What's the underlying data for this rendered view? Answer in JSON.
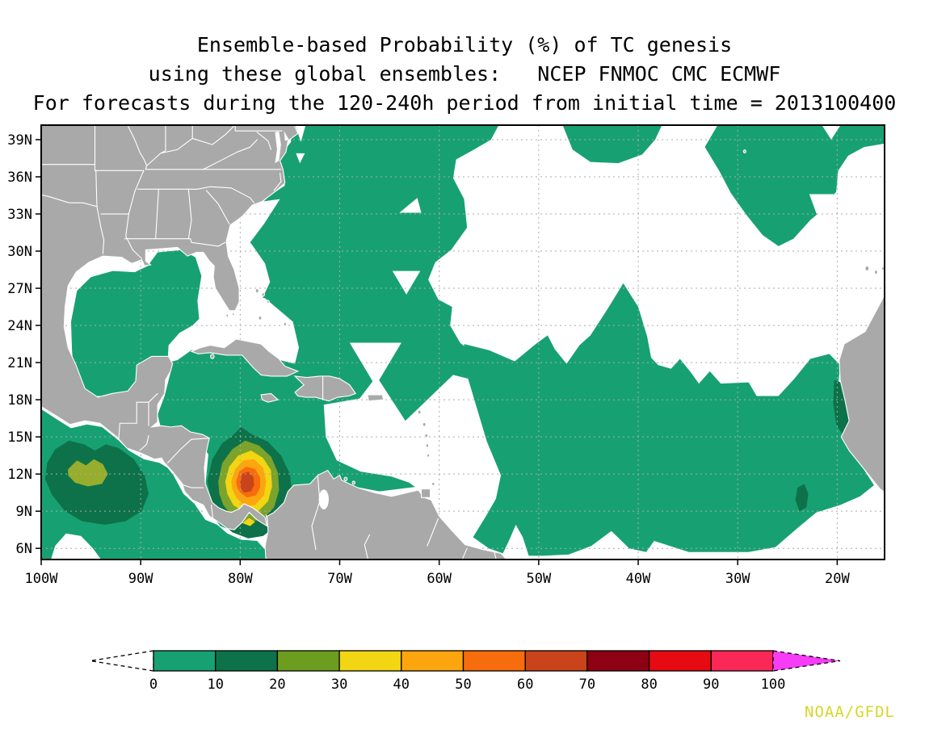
{
  "title": {
    "line1": "Ensemble-based Probability (%) of TC genesis",
    "line2": "using these global ensembles:   NCEP FNMOC CMC ECMWF",
    "line3": "For forecasts during the 120-240h period from initial time = 2013100400"
  },
  "credit": "NOAA/GFDL",
  "chart_data": {
    "type": "heatmap",
    "subtype": "filled-contour-probability-map",
    "variable": "Ensemble-based probability (%) of tropical cyclone genesis",
    "ensembles": [
      "NCEP",
      "FNMOC",
      "CMC",
      "ECMWF"
    ],
    "forecast_period_hours": "120-240",
    "initial_time": "2013100400",
    "lon_range_deg": [
      -100,
      -15.2
    ],
    "lat_range_deg": [
      5.1,
      40.2
    ],
    "grid_spacing": {
      "lat_deg": 3,
      "lon_deg": 10
    },
    "lat_ticks": [
      {
        "deg": 39,
        "label": "39N"
      },
      {
        "deg": 36,
        "label": "36N"
      },
      {
        "deg": 33,
        "label": "33N"
      },
      {
        "deg": 30,
        "label": "30N"
      },
      {
        "deg": 27,
        "label": "27N"
      },
      {
        "deg": 24,
        "label": "24N"
      },
      {
        "deg": 21,
        "label": "21N"
      },
      {
        "deg": 18,
        "label": "18N"
      },
      {
        "deg": 15,
        "label": "15N"
      },
      {
        "deg": 12,
        "label": "12N"
      },
      {
        "deg": 9,
        "label": "9N"
      },
      {
        "deg": 6,
        "label": "6N"
      }
    ],
    "lon_ticks": [
      {
        "deg": -100,
        "label": "100W"
      },
      {
        "deg": -90,
        "label": "90W"
      },
      {
        "deg": -80,
        "label": "80W"
      },
      {
        "deg": -70,
        "label": "70W"
      },
      {
        "deg": -60,
        "label": "60W"
      },
      {
        "deg": -50,
        "label": "50W"
      },
      {
        "deg": -40,
        "label": "40W"
      },
      {
        "deg": -30,
        "label": "30W"
      },
      {
        "deg": -20,
        "label": "20W"
      }
    ],
    "contour_levels_percent": [
      0,
      10,
      20,
      30,
      40,
      50,
      60,
      70,
      80,
      90,
      100
    ],
    "level_colors": [
      "#17a173",
      "#0d7249",
      "#6d9d1f",
      "#f2d513",
      "#fda50f",
      "#f76c0c",
      "#c9441a",
      "#8e0013",
      "#e60b12",
      "#fb2757"
    ],
    "above_max_color": "#f63cf6",
    "below_min_color": "#ffffff",
    "legend_position": "bottom",
    "features": [
      {
        "name": "primary-genesis-maximum",
        "region": "southwest Caribbean off Nicaragua/Panama",
        "center_lon_deg": -79.3,
        "center_lat_deg": 11.4,
        "peak_probability_percent": "60-70"
      },
      {
        "name": "secondary-maximum",
        "region": "eastern Pacific south of Mexico/Guatemala",
        "center_lon_deg": -95.0,
        "center_lat_deg": 12.3,
        "peak_probability_percent": "20-30"
      },
      {
        "name": "east-atlantic-maximum",
        "region": "off West African coast",
        "center_lon_deg": -19.3,
        "center_lat_deg": 17.8,
        "peak_probability_percent": "10-20"
      },
      {
        "name": "central-tropical-atlantic-maximum",
        "region": "central tropical Atlantic",
        "center_lon_deg": -23.5,
        "center_lat_deg": 10.2,
        "peak_probability_percent": "10-20"
      },
      {
        "name": "background-coverage",
        "region": "Gulf of Mexico, western Atlantic, Caribbean and tropical Atlantic",
        "peak_probability_percent": "0-10"
      }
    ]
  },
  "legend": {
    "tick_labels": [
      "0",
      "10",
      "20",
      "30",
      "40",
      "50",
      "60",
      "70",
      "80",
      "90",
      "100"
    ]
  },
  "colors": {
    "land": "#a9a9a9",
    "coast_border": "#ffffff",
    "grid": "#ababab",
    "frame": "#000000",
    "ocean": "#ffffff",
    "credit": "#d6d62a",
    "olive_ring": "#7ca32b",
    "olive_pacific": "#96ad2d"
  }
}
